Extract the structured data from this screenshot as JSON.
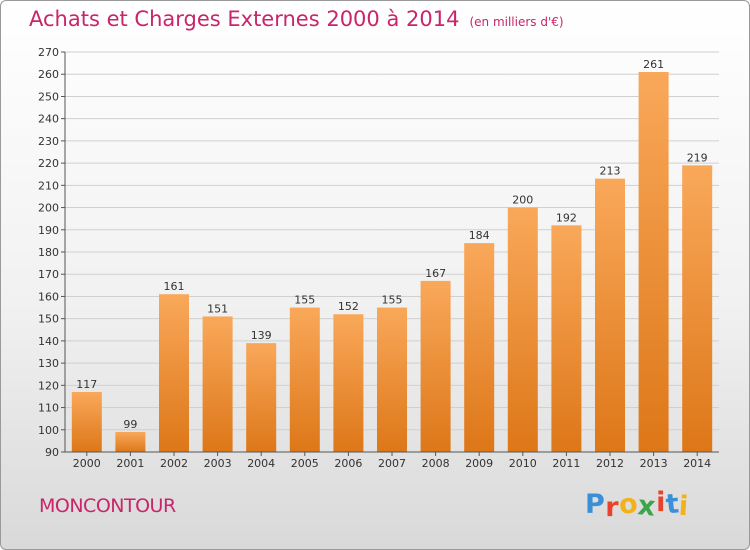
{
  "header": {
    "title": "Achats et Charges Externes 2000 à 2014",
    "subtitle": "(en milliers d'€)"
  },
  "place_name": "MONCONTOUR",
  "logo": {
    "text": "Proxiti",
    "letter_colors": [
      "#3a8fd8",
      "#e8422f",
      "#f2b21a",
      "#3aa64a",
      "#e8422f",
      "#3a8fd8",
      "#f2b21a"
    ]
  },
  "colors": {
    "bar_top": "#f9a85a",
    "bar_bottom": "#dd7718",
    "title": "#c8256a"
  },
  "chart_data": {
    "type": "bar",
    "title": "Achats et Charges Externes 2000 à 2014",
    "xlabel": "",
    "ylabel": "",
    "categories": [
      "2000",
      "2001",
      "2002",
      "2003",
      "2004",
      "2005",
      "2006",
      "2007",
      "2008",
      "2009",
      "2010",
      "2011",
      "2012",
      "2013",
      "2014"
    ],
    "values": [
      117,
      99,
      161,
      151,
      139,
      155,
      152,
      155,
      167,
      184,
      200,
      192,
      213,
      261,
      219
    ],
    "ylim": [
      90,
      270
    ],
    "yticks": [
      90,
      100,
      110,
      120,
      130,
      140,
      150,
      160,
      170,
      180,
      190,
      200,
      210,
      220,
      230,
      240,
      250,
      260,
      270
    ],
    "grid": true,
    "data_labels": true
  }
}
